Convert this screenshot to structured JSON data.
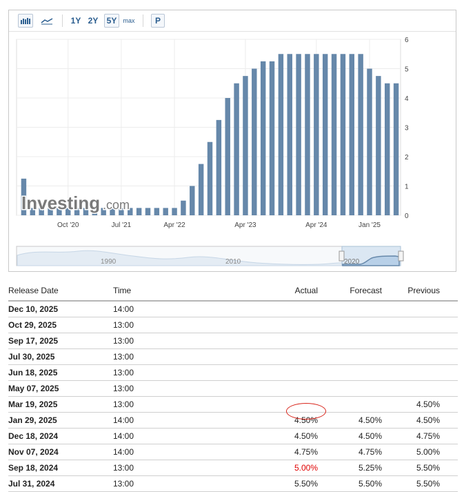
{
  "toolbar": {
    "range_buttons": [
      "1Y",
      "2Y",
      "5Y",
      "max"
    ],
    "active_range": "5Y",
    "print_label": "P",
    "icons": [
      "bar-chart-icon",
      "line-chart-icon"
    ]
  },
  "chart_data": {
    "type": "bar",
    "title": "",
    "xlabel": "",
    "ylabel": "",
    "ylim": [
      0,
      6
    ],
    "y_ticks": [
      0,
      1,
      2,
      3,
      4,
      5,
      6
    ],
    "y_axis_side": "right",
    "x_tick_labels": [
      "Oct '20",
      "Jul '21",
      "Apr '22",
      "Apr '23",
      "Apr '24",
      "Jan '25"
    ],
    "grid": true,
    "watermark_text": "Investing.com",
    "values": [
      1.25,
      0.25,
      0.25,
      0.25,
      0.25,
      0.25,
      0.25,
      0.25,
      0.25,
      0.25,
      0.25,
      0.25,
      0.25,
      0.25,
      0.25,
      0.25,
      0.25,
      0.25,
      0.5,
      1.0,
      1.75,
      2.5,
      3.25,
      4.0,
      4.5,
      4.75,
      5.0,
      5.25,
      5.25,
      5.5,
      5.5,
      5.5,
      5.5,
      5.5,
      5.5,
      5.5,
      5.5,
      5.5,
      5.5,
      5.0,
      4.75,
      4.5,
      4.5
    ],
    "navigator_labels": [
      "1990",
      "2010",
      "2020"
    ]
  },
  "colors": {
    "bar": "#6688aa",
    "bar_faded": "#aac4dd",
    "link_blue": "#2a5d8f",
    "negative_red": "#e00000",
    "annotation_circle": "#d9261c"
  },
  "table": {
    "headers": {
      "release_date": "Release Date",
      "time": "Time",
      "actual": "Actual",
      "forecast": "Forecast",
      "previous": "Previous"
    },
    "rows": [
      {
        "date": "Dec 10, 2025",
        "time": "14:00",
        "actual": "",
        "forecast": "",
        "previous": ""
      },
      {
        "date": "Oct 29, 2025",
        "time": "13:00",
        "actual": "",
        "forecast": "",
        "previous": ""
      },
      {
        "date": "Sep 17, 2025",
        "time": "13:00",
        "actual": "",
        "forecast": "",
        "previous": ""
      },
      {
        "date": "Jul 30, 2025",
        "time": "13:00",
        "actual": "",
        "forecast": "",
        "previous": ""
      },
      {
        "date": "Jun 18, 2025",
        "time": "13:00",
        "actual": "",
        "forecast": "",
        "previous": ""
      },
      {
        "date": "May 07, 2025",
        "time": "13:00",
        "actual": "",
        "forecast": "",
        "previous": ""
      },
      {
        "date": "Mar 19, 2025",
        "time": "13:00",
        "actual": "",
        "forecast": "",
        "previous": "4.50%"
      },
      {
        "date": "Jan 29, 2025",
        "time": "14:00",
        "actual": "4.50%",
        "forecast": "4.50%",
        "previous": "4.50%"
      },
      {
        "date": "Dec 18, 2024",
        "time": "14:00",
        "actual": "4.50%",
        "forecast": "4.50%",
        "previous": "4.75%"
      },
      {
        "date": "Nov 07, 2024",
        "time": "14:00",
        "actual": "4.75%",
        "forecast": "4.75%",
        "previous": "5.00%"
      },
      {
        "date": "Sep 18, 2024",
        "time": "13:00",
        "actual": "5.00%",
        "forecast": "5.25%",
        "previous": "5.50%"
      },
      {
        "date": "Jul 31, 2024",
        "time": "13:00",
        "actual": "5.50%",
        "forecast": "5.50%",
        "previous": "5.50%"
      }
    ]
  }
}
